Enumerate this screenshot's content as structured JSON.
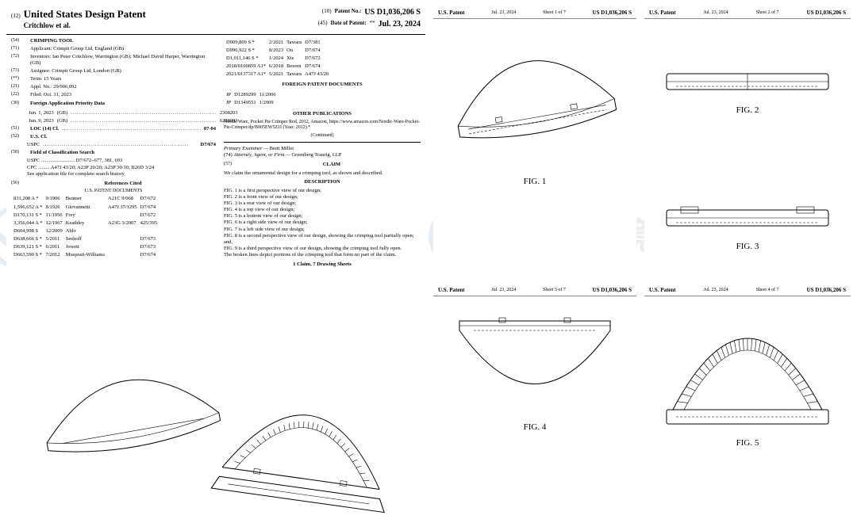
{
  "header": {
    "code12": "(12)",
    "title": "United States Design Patent",
    "authors": "Critchlow et al.",
    "code10": "(10)",
    "label10": "Patent No.:",
    "patent_no": "US D1,036,206 S",
    "code45": "(45)",
    "label45": "Date of Patent:",
    "stars": "**",
    "date": "Jul. 23, 2024"
  },
  "left_entries": [
    {
      "c": "(54)",
      "t": "CRIMPING TOOL",
      "b": true
    },
    {
      "c": "(71)",
      "t": "Applicant: Crimpit Group Ltd, England (GB)"
    },
    {
      "c": "(72)",
      "t": "Inventors: Ian Peter Critchlow, Warrington (GB); Michael David Harper, Warrington (GB)"
    },
    {
      "c": "(73)",
      "t": "Assignee: Crimpit Group Ltd, London (GB)"
    },
    {
      "c": "(**)",
      "t": "Term: 15 Years"
    },
    {
      "c": "(21)",
      "t": "Appl. No.: 29/906,092"
    },
    {
      "c": "(22)",
      "t": "Filed: Oct. 31, 2023"
    }
  ],
  "foreign_priority": {
    "c": "(30)",
    "title": "Foreign Application Priority Data",
    "rows": [
      [
        "Jun. 1, 2023",
        "(GB)",
        "2308203"
      ],
      [
        "Jun. 9, 2023",
        "(GB)",
        "6288993"
      ]
    ]
  },
  "loc": {
    "c": "(51)",
    "label": "LOC (14) Cl.",
    "dots": true,
    "val": "07-04"
  },
  "uscl": {
    "c": "(52)",
    "label": "U.S. Cl.",
    "sub": "USPC",
    "val": "D7/674"
  },
  "search": {
    "c": "(58)",
    "label": "Field of Classification Search",
    "lines": [
      "USPC .......................... D7/672–677, 381, 693",
      "CPC ......... A47J 43/20; A23P 20/20; A23P 30/10; B26D 3/24"
    ],
    "note": "See application file for complete search history."
  },
  "refs": {
    "c": "(56)",
    "title": "References Cited",
    "sub": "U.S. PATENT DOCUMENTS",
    "rows": [
      [
        "831,208 A *",
        "9/1906",
        "Beamer",
        "A21C 9/068",
        "D7/672"
      ],
      [
        "1,596,652 A *",
        "8/1926",
        "Giovannetti",
        "A47J 37/1295",
        "D7/674"
      ],
      [
        "D170,131 S *",
        "11/1956",
        "Frey",
        "",
        "D7/672"
      ],
      [
        "3,356,044 A *",
        "12/1967",
        "Keathley",
        "A23G 3/2007",
        "425/395"
      ],
      [
        "D604,998 S",
        "12/2009",
        "Ablo",
        "",
        " "
      ],
      [
        "D638,666 S *",
        "5/2011",
        "Seehoff",
        "",
        "D7/673"
      ],
      [
        "D639,121 S *",
        "6/2011",
        "Jowett",
        "",
        "D7/673"
      ],
      [
        "D663,590 S *",
        "7/2012",
        "Muspratt-Williams",
        "",
        "D7/674"
      ]
    ]
  },
  "refs_right": [
    [
      "D909,809 S *",
      "2/2021",
      "Tawara",
      "D7/381"
    ],
    [
      "D996,922 S *",
      "8/2023",
      "Ou",
      "D7/674"
    ],
    [
      "D1,011,146 S *",
      "1/2024",
      "Xie",
      "D7/672"
    ],
    [
      "2018/0100859 A1*",
      "6/2018",
      "Beeren",
      "D7/674"
    ],
    [
      "2021/0137317 A1*",
      "5/2021",
      "Tawara",
      "A47J 43/20"
    ]
  ],
  "foreign_docs": {
    "title": "FOREIGN PATENT DOCUMENTS",
    "rows": [
      [
        "JP",
        "D1289299",
        "11/2006"
      ],
      [
        "JP",
        "D1349551",
        "1/2009"
      ]
    ]
  },
  "other_pubs": {
    "title": "OTHER PUBLICATIONS",
    "text": "Nordic Ware, Pocket Pie Crimper Red, 2012, Amazon, https://www.amazon.com/Nordic-Ware-Pocket-Pie-Crimper/dp/B005EW5Z1I (Year: 2012).*",
    "cont": "(Continued)"
  },
  "examiner": {
    "label": "Primary Examiner —",
    "name": "Brett Miller"
  },
  "attorney": {
    "c": "(74)",
    "label": "Attorney, Agent, or Firm —",
    "name": "Greenberg Traurig, LLP"
  },
  "claim": {
    "c": "(57)",
    "title": "CLAIM",
    "text": "We claim the ornamental design for a crimping tool, as shown and described."
  },
  "description": {
    "title": "DESCRIPTION",
    "lines": [
      "FIG. 1 is a first perspective view of our design;",
      "FIG. 2 is a front view of our design;",
      "FIG. 3 is a rear view of our design;",
      "FIG. 4 is a top view of our design;",
      "FIG. 5 is a bottom view of our design;",
      "FIG. 6 is a right side view of our design;",
      "FIG. 7 is a left side view of our design;",
      "FIG. 8 is a second perspective view of our design, showing the crimping tool partially open; and,",
      "FIG. 9 is a third perspective view of our design, showing the crimping tool fully open.",
      "The broken lines depict portions of the crimping tool that form no part of the claim."
    ],
    "footer": "1 Claim, 7 Drawing Sheets"
  },
  "sheets": {
    "name": "U.S. Patent",
    "date": "Jul. 23, 2024",
    "pn": "US D1,036,206 S",
    "s1": "Sheet 1 of 7",
    "s2": "Sheet 2 of 7",
    "s5": "Sheet 5 of 7",
    "s4": "Sheet 4 of 7"
  },
  "figs": {
    "f1": "FIG. 1",
    "f2": "FIG. 2",
    "f3": "FIG. 3",
    "f4": "FIG. 4",
    "f5": "FIG. 5"
  },
  "watermark": "墨婷跨境",
  "colors": {
    "ink": "#000000",
    "wm_blue": "#0e5aa7",
    "wm_text": "#555555",
    "rule": "#000000",
    "grey": "#888888"
  }
}
